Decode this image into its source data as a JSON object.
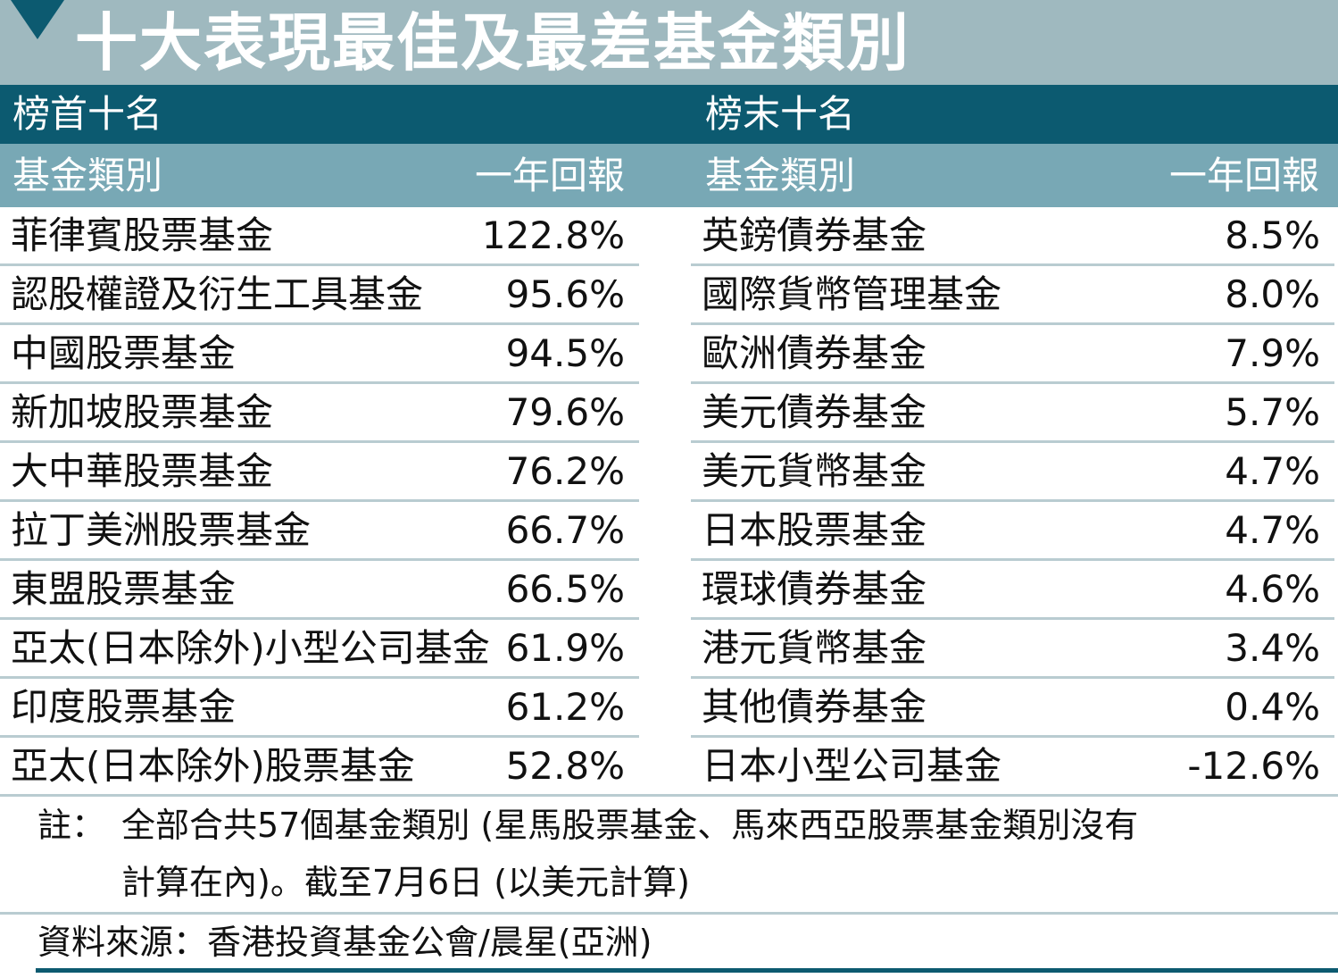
{
  "title": "十大表現最佳及最差基金類別",
  "top_label": "榜首十名",
  "bottom_label": "榜末十名",
  "column_name_label": "基金類別",
  "column_value_label": "一年回報",
  "chart_data": {
    "type": "table",
    "columns": [
      "基金類別",
      "一年回報"
    ],
    "top_ten": [
      {
        "name": "菲律賓股票基金",
        "value": "122.8%"
      },
      {
        "name": "認股權證及衍生工具基金",
        "value": "95.6%"
      },
      {
        "name": "中國股票基金",
        "value": "94.5%"
      },
      {
        "name": "新加坡股票基金",
        "value": "79.6%"
      },
      {
        "name": "大中華股票基金",
        "value": "76.2%"
      },
      {
        "name": "拉丁美洲股票基金",
        "value": "66.7%"
      },
      {
        "name": "東盟股票基金",
        "value": "66.5%"
      },
      {
        "name": "亞太(日本除外)小型公司基金",
        "value": "61.9%"
      },
      {
        "name": "印度股票基金",
        "value": "61.2%"
      },
      {
        "name": "亞太(日本除外)股票基金",
        "value": "52.8%"
      }
    ],
    "bottom_ten": [
      {
        "name": "英鎊債券基金",
        "value": "8.5%"
      },
      {
        "name": "國際貨幣管理基金",
        "value": "8.0%"
      },
      {
        "name": "歐洲債券基金",
        "value": "7.9%"
      },
      {
        "name": "美元債券基金",
        "value": "5.7%"
      },
      {
        "name": "美元貨幣基金",
        "value": "4.7%"
      },
      {
        "name": "日本股票基金",
        "value": "4.7%"
      },
      {
        "name": "環球債券基金",
        "value": "4.6%"
      },
      {
        "name": "港元貨幣基金",
        "value": "3.4%"
      },
      {
        "name": "其他債券基金",
        "value": "0.4%"
      },
      {
        "name": "日本小型公司基金",
        "value": "-12.6%"
      }
    ]
  },
  "note": {
    "label": "註：",
    "line1": "全部合共57個基金類別 (星馬股票基金、馬來西亞股票基金類別沒有",
    "line2": "計算在內)。截至7月6日 (以美元計算)"
  },
  "source": "資料來源：香港投資基金公會/晨星(亞洲)",
  "colors": {
    "title_bg": "#9fb9bf",
    "dark_teal": "#0c5a70",
    "header_teal": "#78a8b5",
    "divider": "#b9ccd1"
  }
}
